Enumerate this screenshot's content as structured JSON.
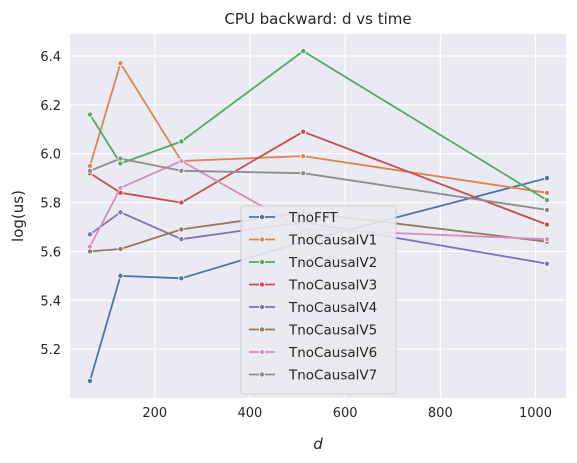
{
  "chart_data": {
    "type": "line",
    "title": "CPU backward: d vs time",
    "xlabel": "d",
    "ylabel": "log(us)",
    "xlim": [
      22,
      1064
    ],
    "ylim": [
      5.0,
      6.49
    ],
    "xticks": [
      200,
      400,
      600,
      800,
      1000
    ],
    "xtick_labels": [
      "200",
      "400",
      "600",
      "800",
      "1000"
    ],
    "yticks": [
      5.2,
      5.4,
      5.6,
      5.8,
      6.0,
      6.2,
      6.4
    ],
    "ytick_labels": [
      "5.2",
      "5.4",
      "5.6",
      "5.8",
      "6.0",
      "6.2",
      "6.4"
    ],
    "grid": true,
    "legend_position": "lower-center",
    "x": [
      64,
      128,
      256,
      512,
      1024
    ],
    "series": [
      {
        "name": "TnoFFT",
        "color": "#4c72b0",
        "values": [
          5.07,
          5.5,
          5.49,
          5.64,
          5.9
        ]
      },
      {
        "name": "TnoCausalV1",
        "color": "#dd8452",
        "values": [
          5.95,
          6.37,
          5.97,
          5.99,
          5.84
        ]
      },
      {
        "name": "TnoCausalV2",
        "color": "#55a868",
        "values": [
          6.16,
          5.96,
          6.05,
          6.42,
          5.81
        ]
      },
      {
        "name": "TnoCausalV3",
        "color": "#c44e52",
        "values": [
          5.92,
          5.84,
          5.8,
          6.09,
          5.71
        ]
      },
      {
        "name": "TnoCausalV4",
        "color": "#8172b3",
        "values": [
          5.67,
          5.76,
          5.65,
          5.72,
          5.55
        ]
      },
      {
        "name": "TnoCausalV5",
        "color": "#937860",
        "values": [
          5.6,
          5.61,
          5.69,
          5.76,
          5.64
        ]
      },
      {
        "name": "TnoCausalV6",
        "color": "#da8bc3",
        "values": [
          5.62,
          5.86,
          5.97,
          5.69,
          5.65
        ]
      },
      {
        "name": "TnoCausalV7",
        "color": "#8c8c8c",
        "values": [
          5.93,
          5.98,
          5.93,
          5.92,
          5.77
        ]
      }
    ]
  }
}
